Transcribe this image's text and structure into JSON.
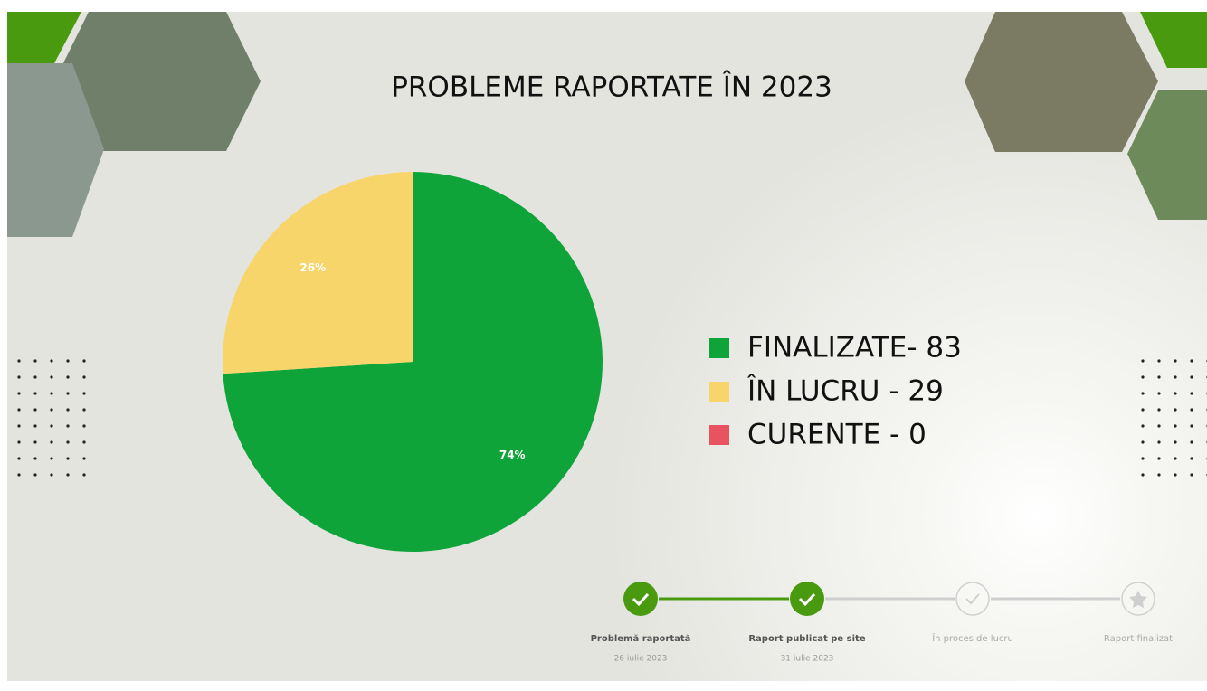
{
  "chart_data": {
    "type": "pie",
    "title": "PROBLEME RAPORTATE ÎN 2023",
    "categories": [
      "FINALIZATE- 83",
      "ÎN LUCRU - 29",
      "CURENTE - 0"
    ],
    "values": [
      74,
      26,
      0
    ],
    "value_labels": [
      "74%",
      "26%",
      null
    ],
    "colors": [
      "#0ea43a",
      "#f8d56a",
      "#e9535f"
    ]
  },
  "timeline": [
    {
      "label": "Problemă raportată",
      "date": "26 iulie 2023",
      "done": true
    },
    {
      "label": "Raport publicat pe site",
      "date": "31 iulie 2023",
      "done": true
    },
    {
      "label": "În proces de lucru",
      "done": false
    },
    {
      "label": "Raport finalizat",
      "done": false
    }
  ]
}
